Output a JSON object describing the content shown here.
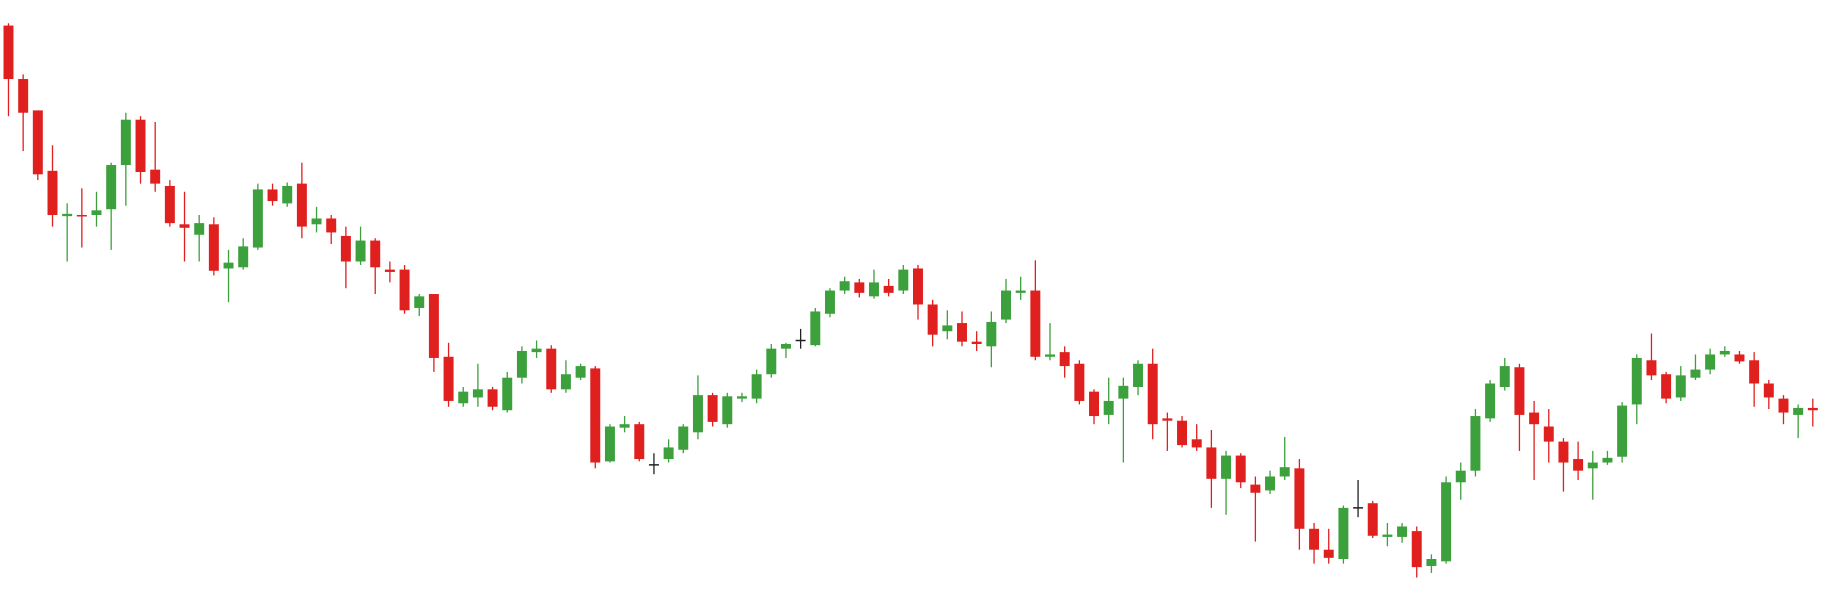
{
  "chart_data": {
    "type": "candlestick",
    "up_color": "#3ca03c",
    "down_color": "#e0201f",
    "doji_color": "#222222",
    "ylim": [
      2,
      520
    ],
    "open": [
      498,
      452,
      425,
      373,
      334,
      335,
      335,
      340,
      378,
      417,
      374,
      360,
      327,
      318,
      327,
      289,
      290,
      307,
      357,
      345,
      362,
      327,
      332,
      317,
      295,
      313,
      288,
      288,
      255,
      267,
      213,
      173,
      178,
      185,
      167,
      195,
      217,
      220,
      185,
      195,
      203,
      123,
      152,
      155,
      120,
      125,
      133,
      148,
      180,
      155,
      177,
      177,
      198,
      220,
      227,
      223,
      250,
      270,
      277,
      265,
      274,
      270,
      289,
      258,
      235,
      242,
      226,
      222,
      245,
      268,
      270,
      213,
      217,
      207,
      183,
      163,
      177,
      187,
      207,
      160,
      158,
      142,
      135,
      108,
      128,
      103,
      98,
      110,
      117,
      65,
      47,
      39,
      83,
      87,
      58,
      58,
      63,
      33,
      37,
      105,
      115,
      160,
      187,
      204,
      165,
      153,
      140,
      125,
      117,
      122,
      127,
      172,
      210,
      198,
      178,
      195,
      202,
      215,
      215,
      210,
      190,
      177,
      163,
      169
    ],
    "high": [
      500,
      456,
      425,
      395,
      345,
      358,
      355,
      380,
      423,
      420,
      415,
      365,
      355,
      335,
      333,
      305,
      315,
      362,
      362,
      363,
      380,
      342,
      335,
      325,
      325,
      315,
      295,
      292,
      267,
      267,
      225,
      187,
      207,
      187,
      200,
      222,
      227,
      223,
      210,
      207,
      205,
      155,
      162,
      157,
      130,
      142,
      155,
      197,
      182,
      182,
      182,
      202,
      224,
      225,
      237,
      255,
      272,
      282,
      280,
      288,
      280,
      292,
      292,
      262,
      253,
      252,
      235,
      252,
      280,
      282,
      296,
      242,
      222,
      210,
      185,
      195,
      195,
      210,
      220,
      165,
      162,
      155,
      150,
      132,
      130,
      110,
      115,
      144,
      125,
      70,
      65,
      85,
      107,
      89,
      70,
      70,
      67,
      43,
      110,
      122,
      168,
      193,
      212,
      207,
      175,
      168,
      143,
      140,
      132,
      132,
      174,
      215,
      233,
      200,
      205,
      215,
      220,
      222,
      218,
      217,
      193,
      180,
      172,
      177
    ],
    "low": [
      420,
      390,
      365,
      325,
      295,
      307,
      325,
      305,
      343,
      362,
      355,
      325,
      295,
      295,
      283,
      260,
      288,
      305,
      343,
      342,
      315,
      320,
      310,
      272,
      292,
      267,
      277,
      250,
      248,
      200,
      170,
      170,
      170,
      167,
      165,
      190,
      212,
      182,
      182,
      193,
      117,
      122,
      148,
      123,
      112,
      122,
      130,
      142,
      153,
      152,
      174,
      173,
      195,
      212,
      220,
      222,
      247,
      267,
      264,
      263,
      265,
      267,
      245,
      222,
      228,
      222,
      218,
      204,
      242,
      262,
      210,
      210,
      195,
      172,
      155,
      155,
      122,
      180,
      142,
      132,
      135,
      132,
      83,
      77,
      100,
      54,
      95,
      107,
      47,
      35,
      35,
      35,
      75,
      57,
      50,
      53,
      23,
      27,
      35,
      90,
      110,
      157,
      184,
      132,
      107,
      122,
      97,
      107,
      90,
      120,
      122,
      155,
      193,
      173,
      175,
      193,
      198,
      213,
      207,
      170,
      168,
      155,
      143,
      153
    ],
    "close": [
      452,
      423,
      370,
      335,
      336,
      334,
      339,
      378,
      417,
      372,
      362,
      328,
      324,
      328,
      287,
      294,
      308,
      357,
      347,
      360,
      325,
      332,
      320,
      295,
      313,
      290,
      286,
      253,
      265,
      212,
      175,
      183,
      185,
      170,
      195,
      218,
      220,
      185,
      198,
      205,
      122,
      153,
      155,
      125,
      120,
      135,
      153,
      180,
      157,
      179,
      179,
      198,
      220,
      224,
      227,
      252,
      270,
      278,
      268,
      277,
      268,
      288,
      258,
      232,
      240,
      226,
      224,
      243,
      270,
      270,
      213,
      215,
      205,
      175,
      162,
      175,
      188,
      207,
      155,
      158,
      137,
      135,
      108,
      128,
      105,
      96,
      110,
      118,
      65,
      47,
      40,
      83,
      83,
      59,
      60,
      67,
      32,
      39,
      105,
      115,
      162,
      190,
      205,
      163,
      155,
      140,
      122,
      115,
      122,
      126,
      171,
      212,
      197,
      177,
      197,
      202,
      215,
      218,
      209,
      190,
      178,
      165,
      169,
      167
    ]
  }
}
